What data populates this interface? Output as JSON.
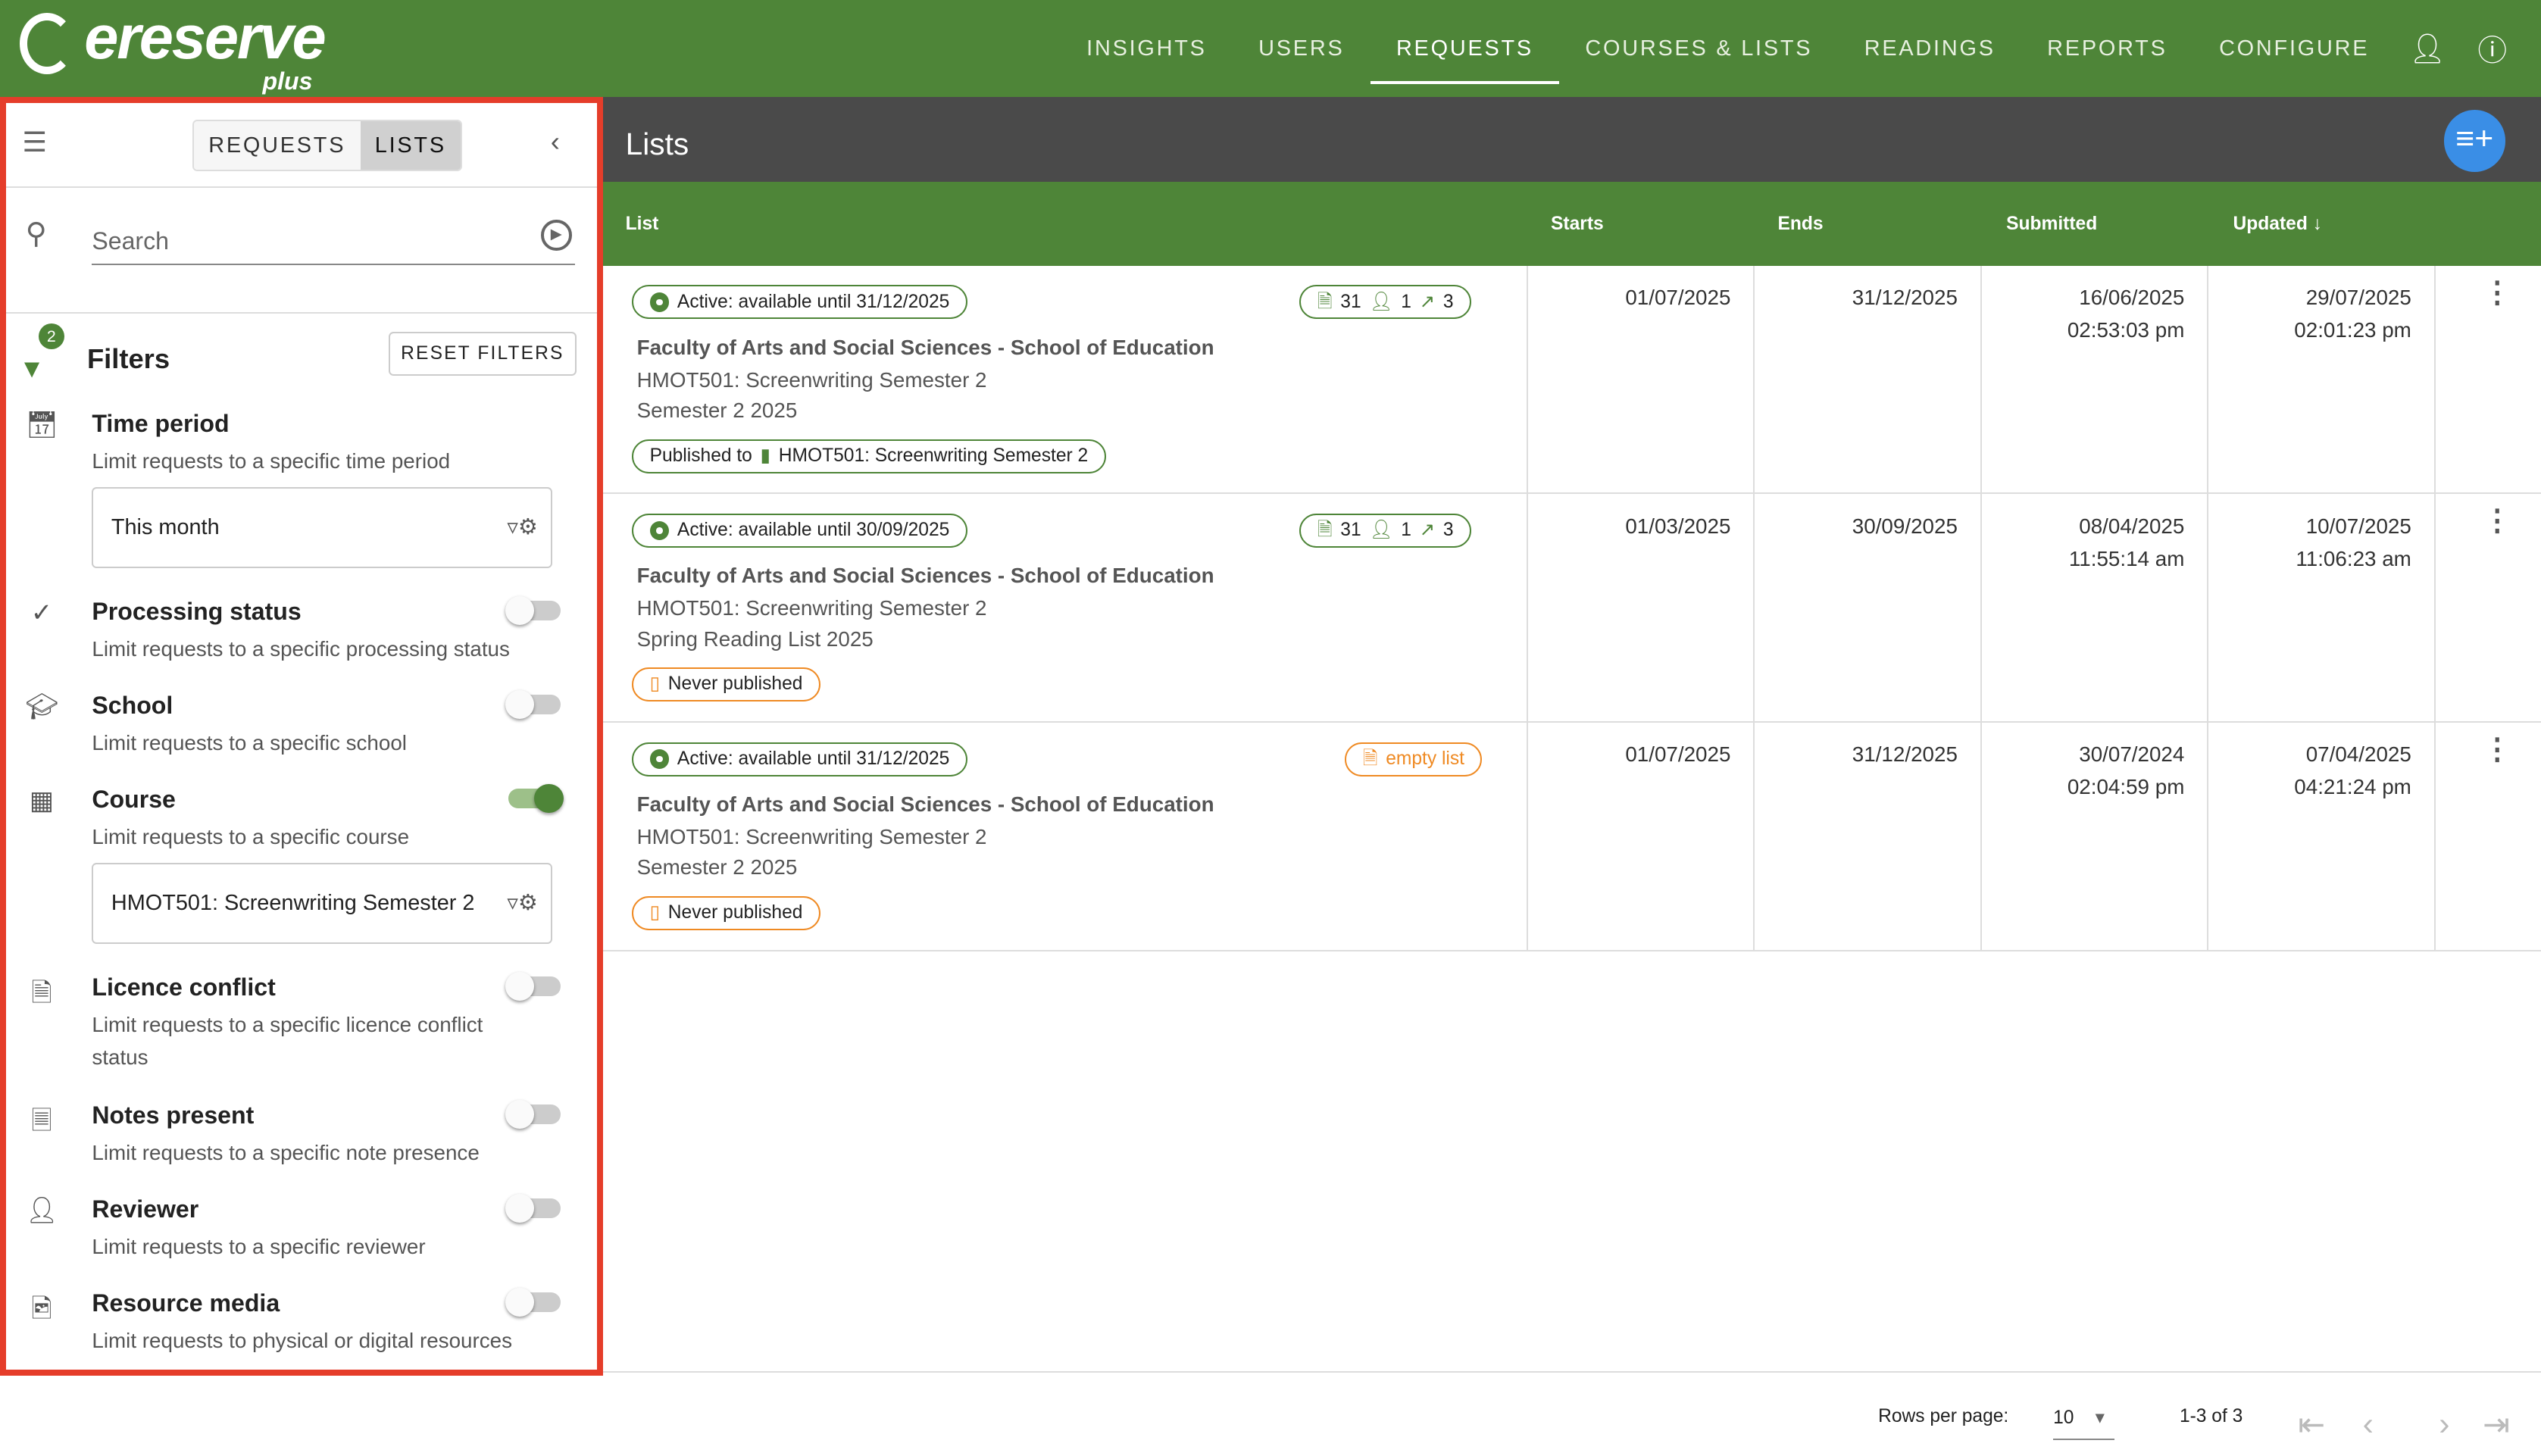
{
  "brand": {
    "name": "ereserve",
    "suffix": "plus"
  },
  "nav": {
    "items": [
      "INSIGHTS",
      "USERS",
      "REQUESTS",
      "COURSES & LISTS",
      "READINGS",
      "REPORTS",
      "CONFIGURE"
    ],
    "active": "REQUESTS"
  },
  "sidebar": {
    "toggle": [
      "REQUESTS",
      "LISTS"
    ],
    "active": "LISTS",
    "search_placeholder": "Search",
    "filters_title": "Filters",
    "filter_count": "2",
    "reset": "RESET FILTERS",
    "filters": [
      {
        "title": "Time period",
        "desc": "Limit requests to a specific time period",
        "value": "This month",
        "enabled": true
      },
      {
        "title": "Processing status",
        "desc": "Limit requests to a specific processing status",
        "enabled": false
      },
      {
        "title": "School",
        "desc": "Limit requests to a specific school",
        "enabled": false
      },
      {
        "title": "Course",
        "desc": "Limit requests to a specific course",
        "value": "HMOT501: Screenwriting Semester 2",
        "enabled": true
      },
      {
        "title": "Licence conflict",
        "desc": "Limit requests to a specific licence conflict status",
        "enabled": false
      },
      {
        "title": "Notes present",
        "desc": "Limit requests to a specific note presence",
        "enabled": false
      },
      {
        "title": "Reviewer",
        "desc": "Limit requests to a specific reviewer",
        "enabled": false
      },
      {
        "title": "Resource media",
        "desc": "Limit requests to physical or digital resources",
        "enabled": false
      }
    ]
  },
  "main": {
    "title": "Lists",
    "columns": [
      "List",
      "Starts",
      "Ends",
      "Submitted",
      "Updated"
    ],
    "sort": "Updated descending",
    "rows": [
      {
        "status": "Active: available until 31/12/2025",
        "counts": {
          "items": "31",
          "users": "1",
          "links": "3"
        },
        "faculty": "Faculty of Arts and Social Sciences - School of Education",
        "course": "HMOT501: Screenwriting Semester 2",
        "list": "Semester 2 2025",
        "pub_label": "Published to",
        "pub_target": "HMOT501: Screenwriting Semester 2",
        "starts": "01/07/2025",
        "ends": "31/12/2025",
        "submitted_date": "16/06/2025",
        "submitted_time": "02:53:03 pm",
        "updated_date": "29/07/2025",
        "updated_time": "02:01:23 pm"
      },
      {
        "status": "Active: available until 30/09/2025",
        "counts": {
          "items": "31",
          "users": "1",
          "links": "3"
        },
        "faculty": "Faculty of Arts and Social Sciences - School of Education",
        "course": "HMOT501: Screenwriting Semester 2",
        "list": "Spring Reading List 2025",
        "pub_label": "Never published",
        "starts": "01/03/2025",
        "ends": "30/09/2025",
        "submitted_date": "08/04/2025",
        "submitted_time": "11:55:14 am",
        "updated_date": "10/07/2025",
        "updated_time": "11:06:23 am"
      },
      {
        "status": "Active: available until 31/12/2025",
        "empty": "empty list",
        "faculty": "Faculty of Arts and Social Sciences - School of Education",
        "course": "HMOT501: Screenwriting Semester 2",
        "list": "Semester 2 2025",
        "pub_label": "Never published",
        "starts": "01/07/2025",
        "ends": "31/12/2025",
        "submitted_date": "30/07/2024",
        "submitted_time": "02:04:59 pm",
        "updated_date": "07/04/2025",
        "updated_time": "04:21:24 pm"
      }
    ]
  },
  "pagination": {
    "rows_label": "Rows per page:",
    "rows_value": "10",
    "range": "1-3 of 3"
  },
  "colors": {
    "brand": "#4e8538",
    "highlight": "#e53d2a",
    "fab": "#3a8ee6",
    "warning": "#ef8a23"
  }
}
